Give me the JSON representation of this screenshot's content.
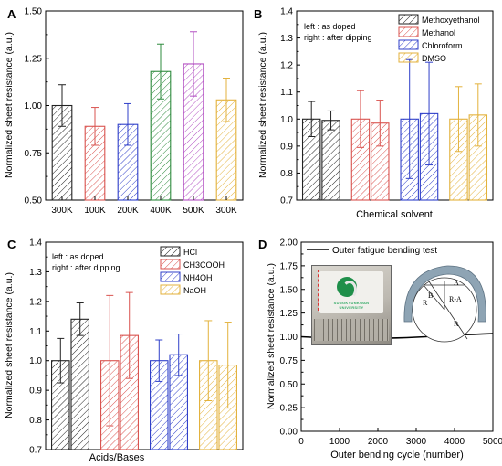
{
  "panel_letters": [
    "A",
    "B",
    "C",
    "D"
  ],
  "chart_data": [
    {
      "id": "A",
      "type": "bar",
      "categories": [
        "300K",
        "100K",
        "200K",
        "400K",
        "500K",
        "300K"
      ],
      "values": [
        1.0,
        0.89,
        0.9,
        1.18,
        1.22,
        1.03
      ],
      "errors": [
        0.11,
        0.1,
        0.11,
        0.145,
        0.17,
        0.115
      ],
      "colors": [
        "#222222",
        "#d9534f",
        "#2f3fc9",
        "#2e8b3e",
        "#b24fc2",
        "#e3b23c"
      ],
      "xlabel": "",
      "ylabel": "Normalized sheet resistance (a.u.)",
      "ylim": [
        0.5,
        1.5
      ],
      "yticks": [
        "0.50",
        "0.75",
        "1.00",
        "1.25",
        "1.50"
      ],
      "grid": false
    },
    {
      "id": "B",
      "type": "bar",
      "categories": [
        "Methoxyethanol",
        "Methanol",
        "Chloroform",
        "DMSO"
      ],
      "series": [
        {
          "values": [
            1.0,
            1.0,
            1.0,
            1.0
          ],
          "errors": [
            0.065,
            0.105,
            0.22,
            0.12
          ]
        },
        {
          "values": [
            0.995,
            0.985,
            1.02,
            1.015
          ],
          "errors": [
            0.035,
            0.085,
            0.19,
            0.115
          ]
        }
      ],
      "colors": [
        "#222222",
        "#d9534f",
        "#2f3fc9",
        "#e3b23c"
      ],
      "annotation": [
        "left : as doped",
        "right : after dipping"
      ],
      "legend": [
        "Methoxyethanol",
        "Methanol",
        "Chloroform",
        "DMSO"
      ],
      "legend_position": "top-right",
      "xlabel": "Chemical solvent",
      "ylabel": "Normalized sheet resistance (a.u.)",
      "ylim": [
        0.7,
        1.4
      ],
      "yticks": [
        "0.7",
        "0.8",
        "0.9",
        "1.0",
        "1.1",
        "1.2",
        "1.3",
        "1.4"
      ],
      "grid": false
    },
    {
      "id": "C",
      "type": "bar",
      "categories": [
        "HCl",
        "CH3COOH",
        "NH4OH",
        "NaOH"
      ],
      "series": [
        {
          "values": [
            1.0,
            1.0,
            1.0,
            1.0
          ],
          "errors": [
            0.075,
            0.22,
            0.07,
            0.135
          ]
        },
        {
          "values": [
            1.14,
            1.085,
            1.02,
            0.985
          ],
          "errors": [
            0.055,
            0.145,
            0.07,
            0.145
          ]
        }
      ],
      "colors": [
        "#222222",
        "#d9534f",
        "#2f3fc9",
        "#e3b23c"
      ],
      "annotation": [
        "left : as doped",
        "right : after dipping"
      ],
      "legend": [
        "HCl",
        "CH3COOH",
        "NH4OH",
        "NaOH"
      ],
      "legend_position": "top-right",
      "xlabel": "Acids/Bases",
      "ylabel": "Normalized sheet resistance (a.u.)",
      "ylim": [
        0.7,
        1.4
      ],
      "yticks": [
        "0.7",
        "0.8",
        "0.9",
        "1.0",
        "1.1",
        "1.2",
        "1.3",
        "1.4"
      ],
      "grid": false
    },
    {
      "id": "D",
      "type": "line",
      "series": [
        {
          "name": "Outer fatigue bending test",
          "x": [
            0,
            250,
            500,
            750,
            1000,
            1250,
            1500,
            1750,
            2000,
            2250,
            2500,
            2750,
            3000,
            3250,
            3500,
            3750,
            4000,
            4250,
            4500,
            4750,
            5000
          ],
          "y": [
            1.0,
            0.995,
            0.99,
            0.99,
            0.988,
            0.986,
            0.985,
            0.983,
            0.984,
            0.985,
            0.987,
            0.99,
            0.995,
            1.0,
            1.008,
            1.015,
            1.02,
            1.022,
            1.025,
            1.03,
            1.033
          ]
        }
      ],
      "legend_position": "top",
      "xlabel": "Outer bending cycle (number)",
      "ylabel": "Normalized sheet resistance (a.u.)",
      "xlim": [
        0,
        5000
      ],
      "ylim": [
        0.0,
        2.0
      ],
      "xticks": [
        "0",
        "1000",
        "2000",
        "3000",
        "4000",
        "5000"
      ],
      "yticks": [
        "0.00",
        "0.25",
        "0.50",
        "0.75",
        "1.00",
        "1.25",
        "1.50",
        "1.75",
        "2.00"
      ],
      "grid": false,
      "diagram_labels": [
        "A",
        "B",
        "R",
        "R-A",
        "R"
      ],
      "photo_caption": "SUNGKYUNKWAN UNIVERSITY"
    }
  ]
}
